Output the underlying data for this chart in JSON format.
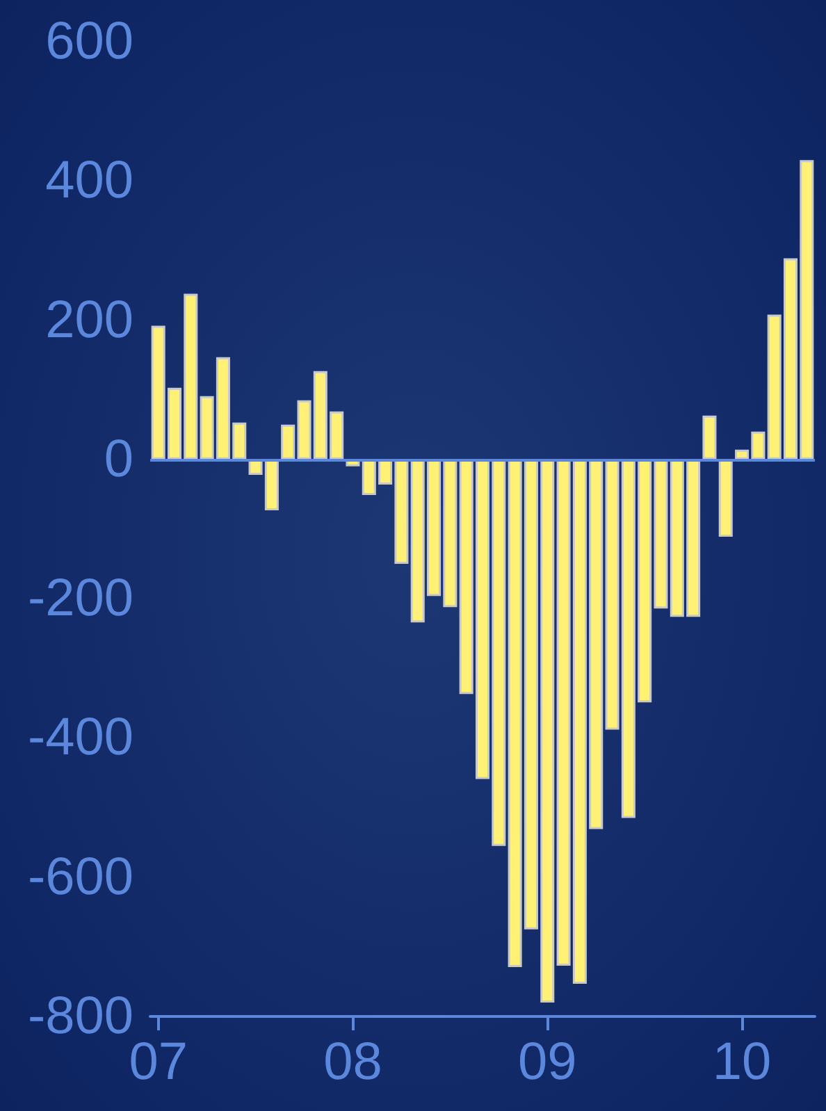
{
  "chart_data": {
    "type": "bar",
    "categories": [
      "07",
      null,
      null,
      null,
      null,
      null,
      null,
      null,
      null,
      null,
      null,
      null,
      "08",
      null,
      null,
      null,
      null,
      null,
      null,
      null,
      null,
      null,
      null,
      null,
      "09",
      null,
      null,
      null,
      null,
      null,
      null,
      null,
      null,
      null,
      null,
      null,
      "10",
      null,
      null,
      null,
      null
    ],
    "series": [
      {
        "color": "#fff176",
        "values": [
          192,
          103,
          238,
          91,
          147,
          53,
          -22,
          -73,
          50,
          85,
          127,
          69,
          -10,
          -51,
          -36,
          -150,
          -234,
          -196,
          -212,
          -337,
          -459,
          -555,
          -729,
          -675,
          -780,
          -727,
          -753,
          -531,
          -388,
          -515,
          -349,
          -214,
          -226,
          -226,
          63,
          -111,
          14,
          40,
          208,
          289,
          430
        ]
      }
    ],
    "ylim": [
      -800,
      600
    ],
    "yticks": [
      -800,
      -600,
      -400,
      -200,
      0,
      200,
      400,
      600
    ],
    "grid": false,
    "ref_lines": [
      {
        "axis": "y",
        "value": 0,
        "color": "#5b87dc"
      }
    ]
  }
}
